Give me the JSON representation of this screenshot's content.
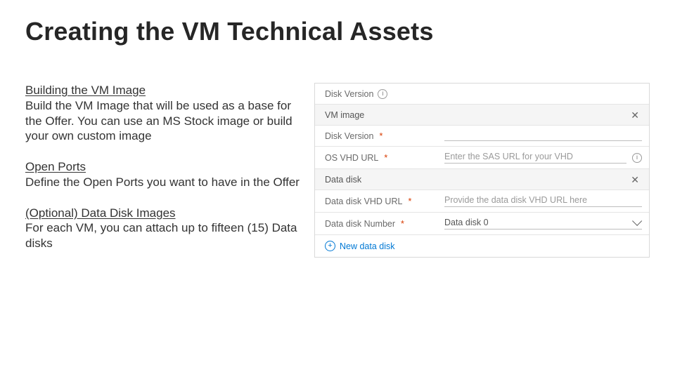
{
  "title": "Creating the VM Technical Assets",
  "sections": [
    {
      "heading": "Building the VM Image",
      "body": "Build the VM Image that will be used as a base for the Offer. You can use an MS Stock image or build your own custom image"
    },
    {
      "heading": "Open Ports",
      "body": "Define the Open Ports you want to have in the Offer"
    },
    {
      "heading": "(Optional) Data Disk Images",
      "body": "For each VM, you can attach up to fifteen (15) Data disks"
    }
  ],
  "form": {
    "disk_version_label": "Disk Version",
    "vm_image_label": "VM image",
    "disk_version2_label": "Disk Version",
    "os_vhd_url_label": "OS VHD URL",
    "os_vhd_url_placeholder": "Enter the SAS URL for your VHD",
    "data_disk_label": "Data disk",
    "data_disk_vhd_url_label": "Data disk VHD URL",
    "data_disk_vhd_url_placeholder": "Provide the data disk VHD URL here",
    "data_disk_number_label": "Data disk Number",
    "data_disk_number_value": "Data disk 0",
    "new_data_disk_label": "New data disk"
  },
  "colors": {
    "accent": "#0078d4",
    "required": "#d83b01",
    "border": "#d9d9d9",
    "muted_text": "#6a6a6a",
    "placeholder": "#9a9a9a",
    "header_bg": "#f5f5f5"
  }
}
